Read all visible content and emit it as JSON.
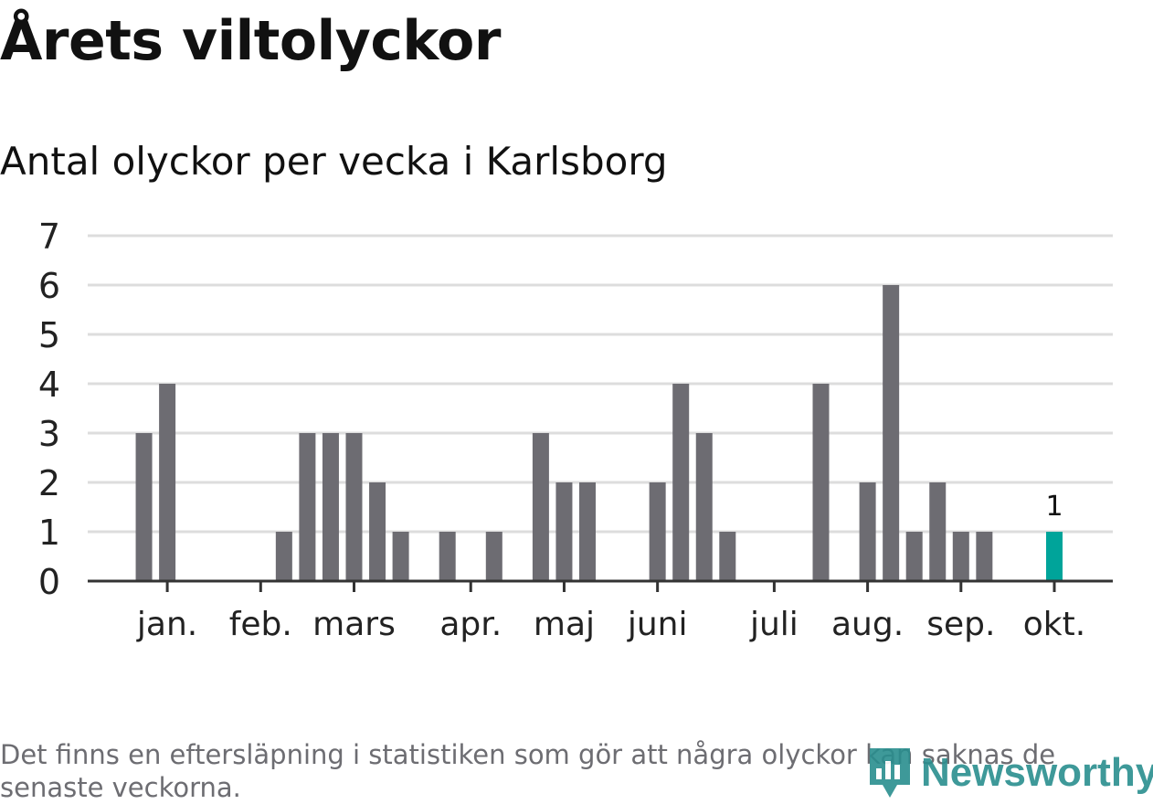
{
  "title": "Årets viltolyckor",
  "subtitle": "Antal olyckor per vecka i Karlsborg",
  "note": "Det finns en eftersläpning i statistiken som gör att några olyckor kan saknas de senaste veckorna.",
  "logo": {
    "text": "Newsworthy",
    "icon": "bar-chart-pin-icon"
  },
  "colors": {
    "bar": "#6d6c72",
    "highlight": "#00a49a",
    "grid": "#dddddd",
    "axis": "#333333",
    "text": "#222222",
    "logo": "#2a8e8e"
  },
  "chart_data": {
    "type": "bar",
    "title": "Antal olyckor per vecka i Karlsborg",
    "xlabel": "",
    "ylabel": "",
    "ylim": [
      0,
      7
    ],
    "yticks": [
      0,
      1,
      2,
      3,
      4,
      5,
      6,
      7
    ],
    "grid": true,
    "weeks": [
      1,
      2,
      3,
      4,
      5,
      6,
      7,
      8,
      9,
      10,
      11,
      12,
      13,
      14,
      15,
      16,
      17,
      18,
      19,
      20,
      21,
      22,
      23,
      24,
      25,
      26,
      27,
      28,
      29,
      30,
      31,
      32,
      33,
      34,
      35,
      36,
      37,
      38,
      39,
      40,
      41,
      42,
      43
    ],
    "values": [
      0,
      3,
      4,
      0,
      0,
      0,
      0,
      1,
      3,
      3,
      3,
      2,
      1,
      0,
      1,
      0,
      1,
      0,
      3,
      2,
      2,
      0,
      0,
      2,
      4,
      3,
      1,
      0,
      0,
      0,
      4,
      0,
      2,
      6,
      1,
      2,
      1,
      1,
      0,
      0,
      1,
      0,
      0
    ],
    "highlight_week": 41,
    "highlight_label": "1",
    "month_ticks": [
      {
        "label": "jan.",
        "week": 3
      },
      {
        "label": "feb.",
        "week": 7
      },
      {
        "label": "mars",
        "week": 11
      },
      {
        "label": "apr.",
        "week": 16
      },
      {
        "label": "maj",
        "week": 20
      },
      {
        "label": "juni",
        "week": 24
      },
      {
        "label": "juli",
        "week": 29
      },
      {
        "label": "aug.",
        "week": 33
      },
      {
        "label": "sep.",
        "week": 37
      },
      {
        "label": "okt.",
        "week": 41
      }
    ]
  }
}
